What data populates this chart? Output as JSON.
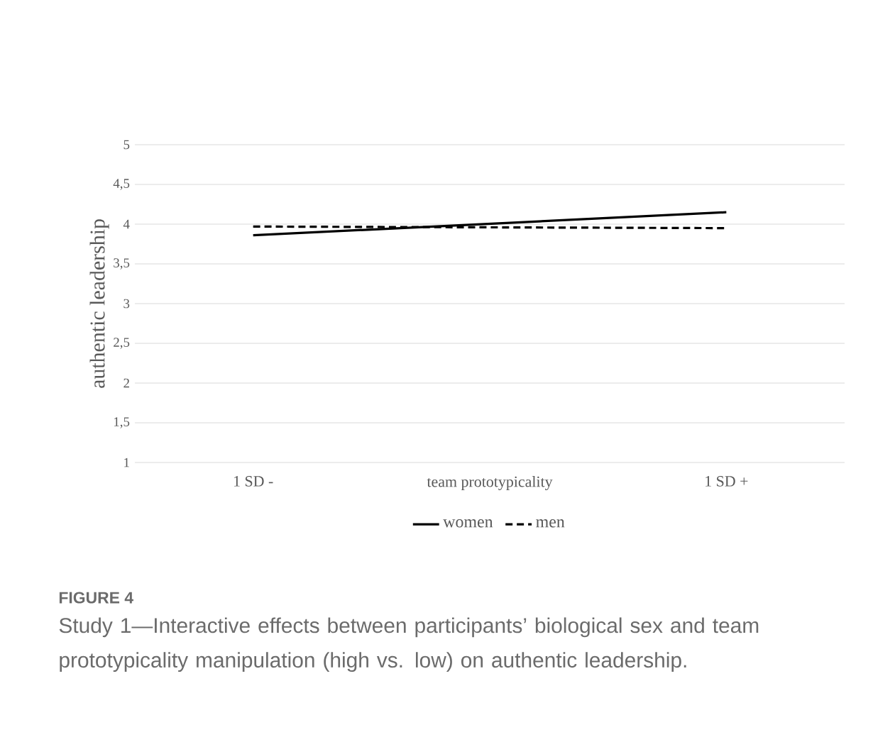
{
  "chart_data": {
    "type": "line",
    "title": "FIGURE 4",
    "subtitle": "Study 1—Interactive effects between participants’ biological sex and team prototypicality manipulation (high vs. low) on authentic leadership.",
    "ylabel": "authentic leadership",
    "categories": [
      "1 SD -",
      "team prototypicality",
      "1 SD +"
    ],
    "series": [
      {
        "name": "women",
        "color": "#000000",
        "line_style": "solid",
        "values": [
          3.86,
          null,
          4.15
        ]
      },
      {
        "name": "men",
        "color": "#000000",
        "line_style": "dashed",
        "values": [
          3.97,
          null,
          3.95
        ]
      }
    ],
    "ylim": [
      1,
      5
    ],
    "yticks": [
      1,
      {
        "value": 1.5,
        "label": "1,5"
      },
      2,
      {
        "value": 2.5,
        "label": "2,5"
      },
      3,
      {
        "value": 3.5,
        "label": "3,5"
      },
      4,
      {
        "value": 4.5,
        "label": "4,5"
      },
      5
    ],
    "grid": "y",
    "legend": "bottom",
    "marker": "none"
  }
}
